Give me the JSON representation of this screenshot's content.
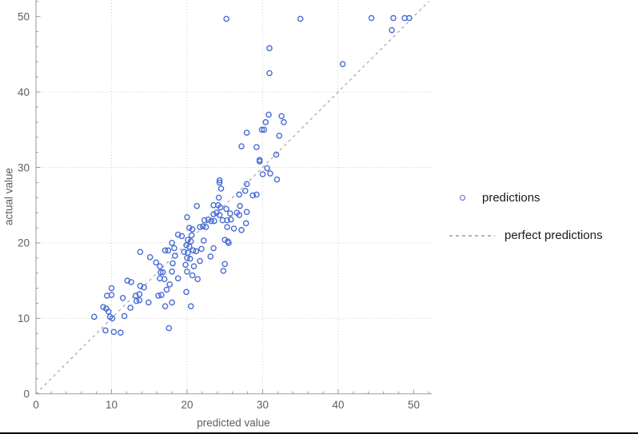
{
  "window": {
    "background": "#ffffff",
    "bottom_border_color": "#000000"
  },
  "chart_data": {
    "type": "scatter",
    "title": "",
    "xlabel": "predicted value",
    "ylabel": "actual value",
    "xlim": [
      0,
      52.3
    ],
    "ylim": [
      0,
      52.3
    ],
    "x_ticks": [
      0,
      10,
      20,
      30,
      40,
      50
    ],
    "y_ticks": [
      0,
      10,
      20,
      30,
      40,
      50
    ],
    "minor_tick_step": 2,
    "grid": {
      "x_gridlines": [
        10,
        20,
        30,
        40
      ],
      "y_gridlines": [
        10,
        20,
        30,
        40
      ],
      "style": "dotted",
      "color": "#c9c9c9"
    },
    "axis_color": "#9a9a9a",
    "tick_label_color": "#5f5f5f",
    "series": [
      {
        "name": "predictions",
        "kind": "scatter",
        "marker": "open-circle",
        "color": "#4a6cd3",
        "points": [
          [
            25.2,
            49.7
          ],
          [
            35.0,
            49.7
          ],
          [
            44.4,
            49.8
          ],
          [
            47.3,
            49.8
          ],
          [
            48.8,
            49.8
          ],
          [
            49.4,
            49.8
          ],
          [
            47.1,
            48.2
          ],
          [
            30.9,
            45.8
          ],
          [
            30.9,
            42.5
          ],
          [
            40.6,
            43.7
          ],
          [
            30.8,
            37.0
          ],
          [
            32.5,
            36.8
          ],
          [
            30.4,
            36.0
          ],
          [
            32.8,
            36.0
          ],
          [
            29.9,
            35.0
          ],
          [
            30.2,
            35.0
          ],
          [
            27.9,
            34.6
          ],
          [
            32.2,
            34.2
          ],
          [
            27.2,
            32.8
          ],
          [
            29.2,
            32.7
          ],
          [
            31.8,
            31.7
          ],
          [
            29.6,
            31.0
          ],
          [
            29.6,
            30.8
          ],
          [
            30.6,
            29.9
          ],
          [
            30.0,
            29.1
          ],
          [
            31.0,
            29.2
          ],
          [
            31.9,
            28.4
          ],
          [
            24.3,
            28.3
          ],
          [
            24.3,
            28.0
          ],
          [
            27.9,
            27.8
          ],
          [
            24.5,
            27.2
          ],
          [
            26.9,
            26.4
          ],
          [
            27.7,
            26.9
          ],
          [
            28.7,
            26.3
          ],
          [
            29.2,
            26.4
          ],
          [
            24.2,
            26.0
          ],
          [
            21.3,
            24.9
          ],
          [
            23.5,
            25.0
          ],
          [
            24.1,
            25.0
          ],
          [
            24.4,
            24.7
          ],
          [
            25.2,
            24.5
          ],
          [
            27.0,
            24.9
          ],
          [
            23.5,
            23.8
          ],
          [
            23.9,
            24.0
          ],
          [
            24.3,
            23.7
          ],
          [
            25.7,
            23.9
          ],
          [
            26.6,
            24.0
          ],
          [
            26.9,
            23.7
          ],
          [
            27.9,
            24.1
          ],
          [
            20.0,
            23.4
          ],
          [
            22.3,
            23.0
          ],
          [
            22.8,
            23.1
          ],
          [
            23.2,
            22.9
          ],
          [
            23.6,
            22.9
          ],
          [
            24.7,
            23.0
          ],
          [
            25.3,
            23.0
          ],
          [
            25.8,
            23.1
          ],
          [
            27.8,
            22.6
          ],
          [
            20.3,
            22.0
          ],
          [
            20.7,
            21.8
          ],
          [
            21.7,
            22.1
          ],
          [
            22.1,
            22.2
          ],
          [
            22.5,
            22.1
          ],
          [
            25.3,
            22.1
          ],
          [
            26.2,
            21.9
          ],
          [
            27.2,
            21.7
          ],
          [
            18.8,
            21.1
          ],
          [
            19.3,
            20.9
          ],
          [
            20.6,
            21.0
          ],
          [
            20.1,
            20.4
          ],
          [
            20.5,
            20.2
          ],
          [
            22.2,
            20.3
          ],
          [
            25.0,
            20.4
          ],
          [
            25.4,
            20.2
          ],
          [
            25.5,
            20.0
          ],
          [
            19.9,
            19.7
          ],
          [
            20.3,
            19.5
          ],
          [
            20.8,
            19.0
          ],
          [
            21.2,
            18.9
          ],
          [
            19.6,
            18.8
          ],
          [
            20.1,
            18.7
          ],
          [
            21.9,
            19.2
          ],
          [
            23.5,
            19.3
          ],
          [
            23.1,
            18.2
          ],
          [
            20.0,
            18.0
          ],
          [
            20.4,
            17.9
          ],
          [
            21.7,
            17.6
          ],
          [
            19.8,
            17.1
          ],
          [
            20.9,
            16.9
          ],
          [
            25.0,
            17.2
          ],
          [
            20.0,
            16.2
          ],
          [
            24.8,
            16.3
          ],
          [
            20.7,
            15.7
          ],
          [
            13.8,
            18.8
          ],
          [
            15.1,
            18.1
          ],
          [
            15.9,
            17.4
          ],
          [
            16.4,
            16.9
          ],
          [
            17.1,
            19.0
          ],
          [
            17.5,
            19.0
          ],
          [
            18.0,
            20.0
          ],
          [
            18.3,
            19.3
          ],
          [
            18.4,
            18.3
          ],
          [
            18.1,
            17.3
          ],
          [
            16.5,
            16.1
          ],
          [
            16.8,
            16.1
          ],
          [
            18.0,
            16.2
          ],
          [
            12.1,
            15.0
          ],
          [
            12.6,
            14.8
          ],
          [
            13.8,
            14.3
          ],
          [
            14.3,
            14.1
          ],
          [
            16.4,
            15.3
          ],
          [
            17.0,
            15.2
          ],
          [
            9.4,
            13.0
          ],
          [
            10.0,
            13.1
          ],
          [
            10.0,
            14.0
          ],
          [
            13.2,
            13.0
          ],
          [
            13.7,
            13.2
          ],
          [
            13.7,
            12.4
          ],
          [
            13.3,
            12.3
          ],
          [
            16.2,
            13.0
          ],
          [
            16.6,
            13.1
          ],
          [
            17.3,
            13.8
          ],
          [
            17.7,
            14.5
          ],
          [
            14.9,
            12.1
          ],
          [
            11.5,
            12.7
          ],
          [
            12.5,
            11.4
          ],
          [
            17.1,
            11.6
          ],
          [
            18.0,
            12.1
          ],
          [
            8.9,
            11.5
          ],
          [
            9.3,
            11.3
          ],
          [
            9.6,
            10.9
          ],
          [
            7.7,
            10.2
          ],
          [
            9.8,
            10.2
          ],
          [
            10.1,
            10.0
          ],
          [
            11.7,
            10.3
          ],
          [
            9.2,
            8.4
          ],
          [
            10.3,
            8.2
          ],
          [
            11.2,
            8.1
          ],
          [
            17.6,
            8.7
          ],
          [
            18.8,
            15.3
          ],
          [
            21.4,
            15.2
          ],
          [
            19.9,
            13.5
          ],
          [
            20.5,
            11.6
          ]
        ]
      },
      {
        "name": "perfect predictions",
        "kind": "line",
        "style": "dashed",
        "color": "#9a9a9a",
        "points": [
          [
            0,
            0
          ],
          [
            52,
            52
          ]
        ]
      }
    ],
    "legend": {
      "position": "right",
      "items": [
        {
          "label": "predictions",
          "marker": "open-circle",
          "color": "#4a6cd3"
        },
        {
          "label": "perfect predictions",
          "marker": "dashed-line",
          "color": "#b4b4b4"
        }
      ]
    }
  }
}
